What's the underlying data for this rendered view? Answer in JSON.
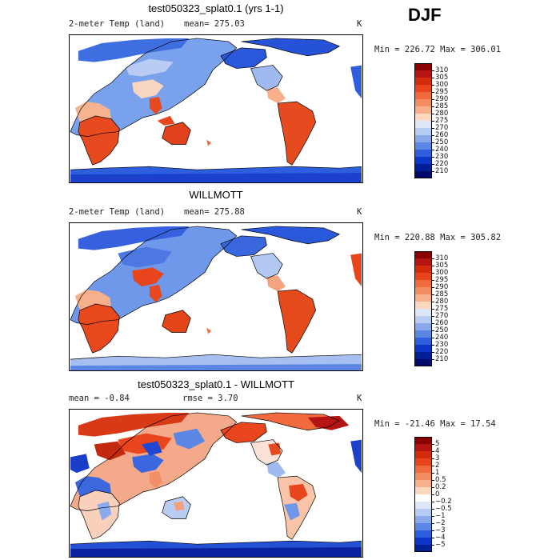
{
  "season": "DJF",
  "panels": [
    {
      "title": "test050323_splat0.1 (yrs 1-1)",
      "variable": "2-meter Temp (land)",
      "stat1": "mean= 275.03",
      "stat2": "",
      "units": "K",
      "minmax": "Min = 226.72 Max = 306.01",
      "kind": "abs",
      "colorbar": {
        "ticks": [
          "310",
          "305",
          "300",
          "295",
          "290",
          "285",
          "280",
          "275",
          "270",
          "260",
          "250",
          "240",
          "230",
          "220",
          "210"
        ],
        "colors": [
          "#8b0000",
          "#b41414",
          "#d42a0e",
          "#e8451c",
          "#f06a3e",
          "#f48c62",
          "#f8b08c",
          "#fcd8c0",
          "#dde7f8",
          "#b6ccf3",
          "#89a9ec",
          "#5c86e4",
          "#2f5edc",
          "#0c36c8",
          "#001e96",
          "#000a6a"
        ]
      }
    },
    {
      "title": "WILLMOTT",
      "variable": "2-meter Temp (land)",
      "stat1": "mean= 275.88",
      "stat2": "",
      "units": "K",
      "minmax": "Min = 220.88 Max = 305.82",
      "kind": "abs",
      "colorbar": {
        "ticks": [
          "310",
          "305",
          "300",
          "295",
          "290",
          "285",
          "280",
          "275",
          "270",
          "260",
          "250",
          "240",
          "230",
          "220",
          "210"
        ],
        "colors": [
          "#8b0000",
          "#b41414",
          "#d42a0e",
          "#e8451c",
          "#f06a3e",
          "#f48c62",
          "#f8b08c",
          "#fcd8c0",
          "#dde7f8",
          "#b6ccf3",
          "#89a9ec",
          "#5c86e4",
          "#2f5edc",
          "#0c36c8",
          "#001e96",
          "#000a6a"
        ]
      }
    },
    {
      "title": "test050323_splat0.1 - WILLMOTT",
      "variable": "",
      "stat1": "mean =   -0.84",
      "stat2": "rmse =    3.70",
      "units": "K",
      "minmax": "Min = -21.46 Max =  17.54",
      "kind": "diff",
      "colorbar": {
        "ticks": [
          "5",
          "4",
          "3",
          "2",
          "1",
          "0.5",
          "0.2",
          "0",
          "−0.2",
          "−0.5",
          "−1",
          "−2",
          "−3",
          "−4",
          "−5"
        ],
        "colors": [
          "#8b0000",
          "#b41414",
          "#d42a0e",
          "#e8451c",
          "#f06a3e",
          "#f48c62",
          "#f8b08c",
          "#fcd8c0",
          "#ffffff",
          "#dde7f8",
          "#b6ccf3",
          "#89a9ec",
          "#5c86e4",
          "#2f5edc",
          "#0c36c8",
          "#001e96"
        ]
      }
    }
  ]
}
